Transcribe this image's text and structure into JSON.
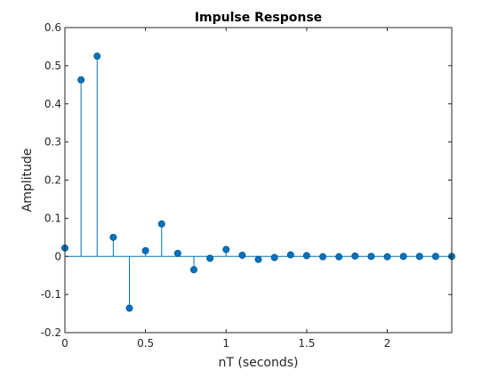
{
  "chart_data": {
    "type": "stem",
    "title": "Impulse Response",
    "xlabel": "nT (seconds)",
    "ylabel": "Amplitude",
    "xlim": [
      0,
      2.4
    ],
    "ylim": [
      -0.2,
      0.6
    ],
    "xticks": [
      0,
      0.5,
      1,
      1.5,
      2
    ],
    "xtick_labels": [
      "0",
      "0.5",
      "1",
      "1.5",
      "2"
    ],
    "yticks": [
      -0.2,
      -0.1,
      0,
      0.1,
      0.2,
      0.3,
      0.4,
      0.5,
      0.6
    ],
    "ytick_labels": [
      "-0.2",
      "-0.1",
      "0",
      "0.1",
      "0.2",
      "0.3",
      "0.4",
      "0.5",
      "0.6"
    ],
    "grid": false,
    "color": "#0072BD",
    "x": [
      0,
      0.1,
      0.2,
      0.3,
      0.4,
      0.5,
      0.6,
      0.7,
      0.8,
      0.9,
      1.0,
      1.1,
      1.2,
      1.3,
      1.4,
      1.5,
      1.6,
      1.7,
      1.8,
      1.9,
      2.0,
      2.1,
      2.2,
      2.3,
      2.4
    ],
    "y": [
      0.022,
      0.463,
      0.525,
      0.05,
      -0.136,
      0.015,
      0.085,
      0.008,
      -0.035,
      -0.005,
      0.018,
      0.003,
      -0.008,
      -0.003,
      0.004,
      0.002,
      -0.001,
      -0.001,
      0.001,
      0.0,
      -0.001,
      0.0,
      0.0,
      0.0,
      0.0
    ]
  }
}
